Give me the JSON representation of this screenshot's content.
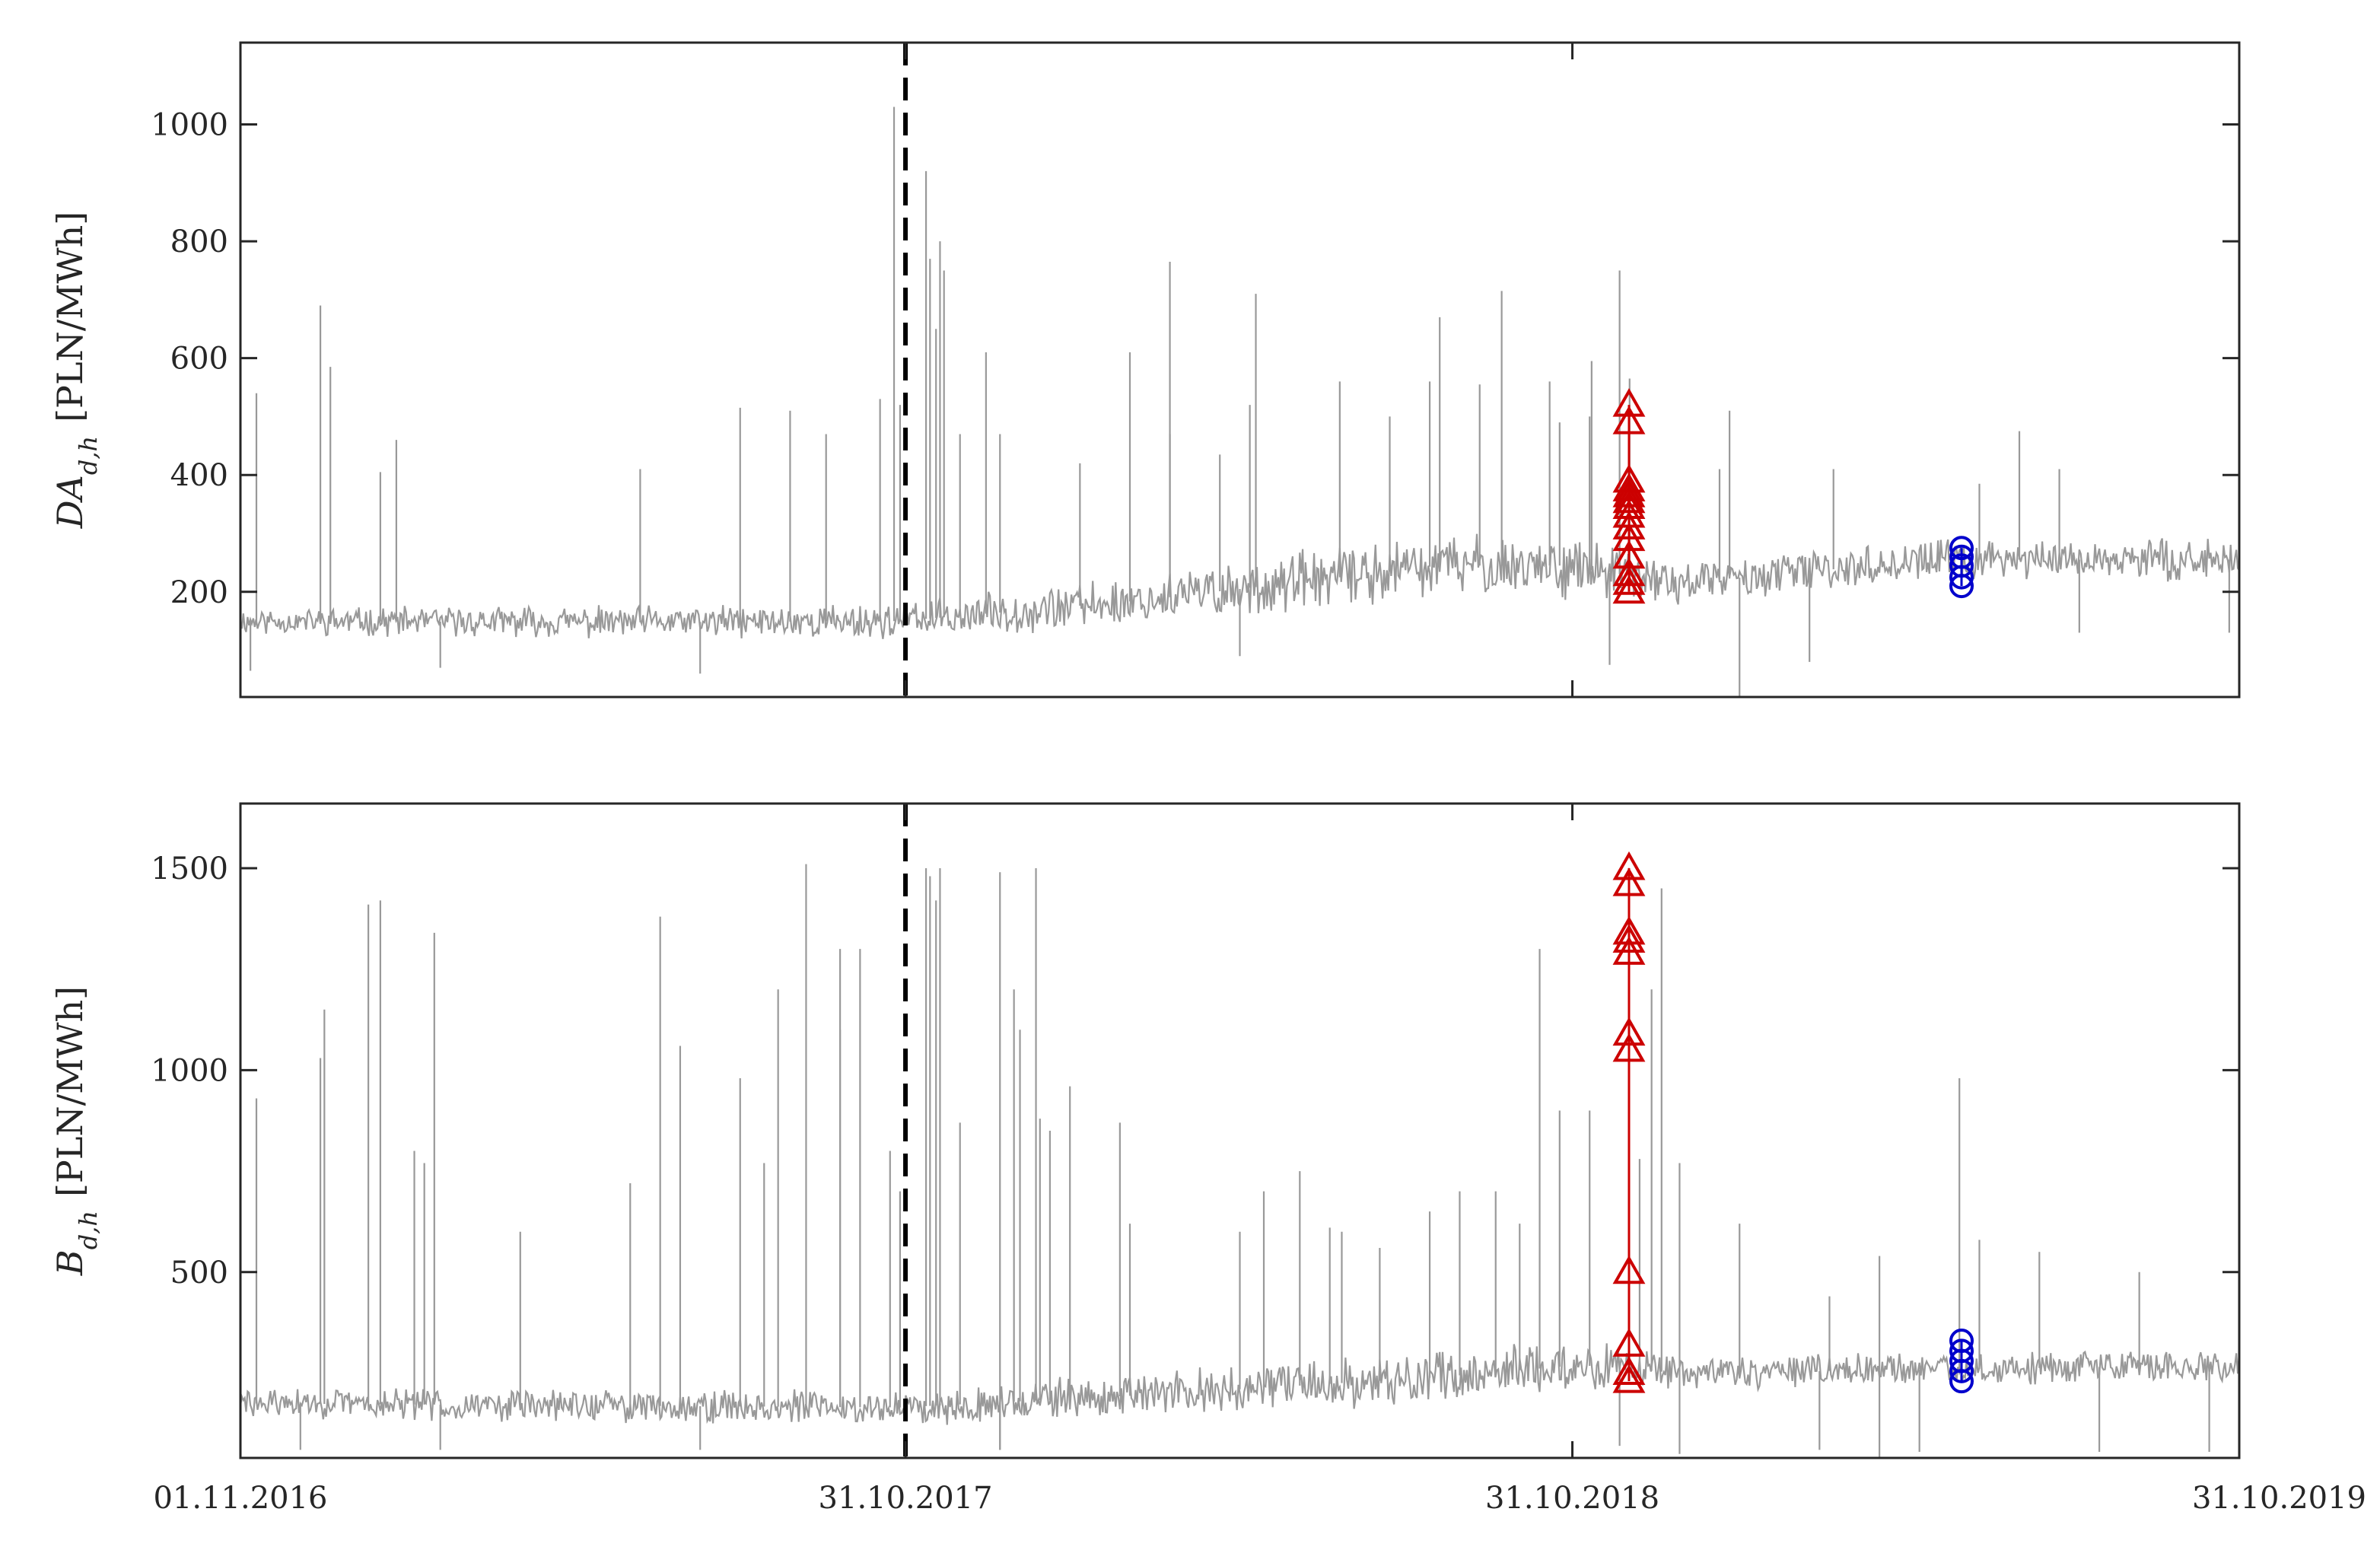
{
  "chart_data": [
    {
      "type": "line",
      "panel": "top",
      "ylabel_main": "DA",
      "ylabel_sub": "d,h",
      "ylabel_unit": "[PLN/MWh]",
      "ylim": [
        20,
        1140
      ],
      "yticks": [
        200,
        400,
        600,
        800,
        1000
      ],
      "xlim": [
        "01.11.2016",
        "31.10.2019"
      ],
      "grid": false,
      "vline_date": "31.10.2017",
      "base_level": [
        [
          0,
          150
        ],
        [
          0.2,
          148
        ],
        [
          0.33,
          150
        ],
        [
          0.45,
          185
        ],
        [
          0.6,
          245
        ],
        [
          0.66,
          245
        ],
        [
          0.72,
          215
        ],
        [
          0.85,
          255
        ],
        [
          1.0,
          255
        ]
      ],
      "noise_amplitude": [
        [
          0,
          30
        ],
        [
          0.33,
          40
        ],
        [
          0.5,
          65
        ],
        [
          0.67,
          70
        ],
        [
          0.72,
          45
        ],
        [
          1.0,
          45
        ]
      ],
      "dips": [
        [
          0.005,
          65
        ],
        [
          0.1,
          70
        ],
        [
          0.23,
          60
        ],
        [
          0.5,
          90
        ],
        [
          0.685,
          75
        ],
        [
          0.75,
          20
        ],
        [
          0.785,
          80
        ],
        [
          0.92,
          130
        ],
        [
          0.995,
          130
        ]
      ],
      "spikes": [
        {
          "x": 0.008,
          "y": 540
        },
        {
          "x": 0.04,
          "y": 690
        },
        {
          "x": 0.045,
          "y": 585
        },
        {
          "x": 0.07,
          "y": 405
        },
        {
          "x": 0.078,
          "y": 460
        },
        {
          "x": 0.2,
          "y": 410
        },
        {
          "x": 0.25,
          "y": 515
        },
        {
          "x": 0.275,
          "y": 510
        },
        {
          "x": 0.293,
          "y": 470
        },
        {
          "x": 0.327,
          "y": 1030
        },
        {
          "x": 0.32,
          "y": 530
        },
        {
          "x": 0.343,
          "y": 920
        },
        {
          "x": 0.33,
          "y": 520
        },
        {
          "x": 0.345,
          "y": 770
        },
        {
          "x": 0.348,
          "y": 650
        },
        {
          "x": 0.35,
          "y": 800
        },
        {
          "x": 0.352,
          "y": 750
        },
        {
          "x": 0.36,
          "y": 470
        },
        {
          "x": 0.373,
          "y": 610
        },
        {
          "x": 0.38,
          "y": 470
        },
        {
          "x": 0.42,
          "y": 420
        },
        {
          "x": 0.445,
          "y": 610
        },
        {
          "x": 0.465,
          "y": 470
        },
        {
          "x": 0.465,
          "y": 765
        },
        {
          "x": 0.49,
          "y": 435
        },
        {
          "x": 0.505,
          "y": 520
        },
        {
          "x": 0.508,
          "y": 710
        },
        {
          "x": 0.55,
          "y": 560
        },
        {
          "x": 0.575,
          "y": 500
        },
        {
          "x": 0.595,
          "y": 560
        },
        {
          "x": 0.6,
          "y": 670
        },
        {
          "x": 0.62,
          "y": 555
        },
        {
          "x": 0.631,
          "y": 715
        },
        {
          "x": 0.655,
          "y": 560
        },
        {
          "x": 0.66,
          "y": 490
        },
        {
          "x": 0.676,
          "y": 595
        },
        {
          "x": 0.675,
          "y": 500
        },
        {
          "x": 0.69,
          "y": 750
        },
        {
          "x": 0.695,
          "y": 565
        },
        {
          "x": 0.74,
          "y": 410
        },
        {
          "x": 0.745,
          "y": 510
        },
        {
          "x": 0.797,
          "y": 410
        },
        {
          "x": 0.87,
          "y": 385
        },
        {
          "x": 0.89,
          "y": 475
        },
        {
          "x": 0.91,
          "y": 410
        }
      ],
      "red_marker_x": "01.12.2018",
      "red_markers": [
        200,
        215,
        230,
        260,
        290,
        310,
        330,
        345,
        355,
        365,
        375,
        390,
        490,
        520
      ],
      "blue_marker_x": "01.06.2019",
      "blue_markers": [
        210,
        225,
        245,
        260,
        275
      ]
    },
    {
      "type": "line",
      "panel": "bottom",
      "ylabel_main": "B",
      "ylabel_sub": "d,h",
      "ylabel_unit": "[PLN/MWh]",
      "ylim": [
        40,
        1660
      ],
      "yticks": [
        500,
        1000,
        1500
      ],
      "xlim": [
        "01.11.2016",
        "31.10.2019"
      ],
      "xticks": [
        "01.11.2016",
        "31.10.2017",
        "31.10.2018",
        "31.10.2019"
      ],
      "grid": false,
      "vline_date": "31.10.2017",
      "base_level": [
        [
          0,
          175
        ],
        [
          0.33,
          165
        ],
        [
          0.45,
          195
        ],
        [
          0.6,
          240
        ],
        [
          0.67,
          270
        ],
        [
          0.72,
          250
        ],
        [
          1.0,
          270
        ]
      ],
      "noise_amplitude": [
        [
          0,
          50
        ],
        [
          0.33,
          55
        ],
        [
          0.5,
          80
        ],
        [
          0.67,
          90
        ],
        [
          0.72,
          55
        ],
        [
          1.0,
          55
        ]
      ],
      "dips": [
        [
          0.03,
          60
        ],
        [
          0.1,
          60
        ],
        [
          0.23,
          60
        ],
        [
          0.38,
          60
        ],
        [
          0.38,
          60
        ],
        [
          0.69,
          70
        ],
        [
          0.72,
          50
        ],
        [
          0.79,
          60
        ],
        [
          0.82,
          40
        ],
        [
          0.84,
          55
        ],
        [
          0.93,
          55
        ],
        [
          0.985,
          55
        ]
      ],
      "spikes": [
        {
          "x": 0.008,
          "y": 930
        },
        {
          "x": 0.04,
          "y": 1030
        },
        {
          "x": 0.042,
          "y": 1150
        },
        {
          "x": 0.064,
          "y": 1410
        },
        {
          "x": 0.07,
          "y": 1420
        },
        {
          "x": 0.087,
          "y": 800
        },
        {
          "x": 0.092,
          "y": 770
        },
        {
          "x": 0.097,
          "y": 1340
        },
        {
          "x": 0.14,
          "y": 600
        },
        {
          "x": 0.195,
          "y": 720
        },
        {
          "x": 0.21,
          "y": 1380
        },
        {
          "x": 0.22,
          "y": 1060
        },
        {
          "x": 0.25,
          "y": 980
        },
        {
          "x": 0.262,
          "y": 770
        },
        {
          "x": 0.269,
          "y": 1200
        },
        {
          "x": 0.283,
          "y": 1510
        },
        {
          "x": 0.3,
          "y": 1100
        },
        {
          "x": 0.3,
          "y": 1300
        },
        {
          "x": 0.31,
          "y": 1300
        },
        {
          "x": 0.325,
          "y": 800
        },
        {
          "x": 0.33,
          "y": 700
        },
        {
          "x": 0.343,
          "y": 1500
        },
        {
          "x": 0.345,
          "y": 1480
        },
        {
          "x": 0.348,
          "y": 1420
        },
        {
          "x": 0.35,
          "y": 1500
        },
        {
          "x": 0.38,
          "y": 1490
        },
        {
          "x": 0.36,
          "y": 870
        },
        {
          "x": 0.387,
          "y": 1200
        },
        {
          "x": 0.39,
          "y": 1100
        },
        {
          "x": 0.398,
          "y": 1500
        },
        {
          "x": 0.4,
          "y": 880
        },
        {
          "x": 0.405,
          "y": 850
        },
        {
          "x": 0.415,
          "y": 960
        },
        {
          "x": 0.44,
          "y": 870
        },
        {
          "x": 0.445,
          "y": 620
        },
        {
          "x": 0.5,
          "y": 600
        },
        {
          "x": 0.512,
          "y": 700
        },
        {
          "x": 0.53,
          "y": 750
        },
        {
          "x": 0.545,
          "y": 610
        },
        {
          "x": 0.551,
          "y": 600
        },
        {
          "x": 0.57,
          "y": 560
        },
        {
          "x": 0.595,
          "y": 650
        },
        {
          "x": 0.61,
          "y": 700
        },
        {
          "x": 0.628,
          "y": 700
        },
        {
          "x": 0.64,
          "y": 620
        },
        {
          "x": 0.65,
          "y": 1300
        },
        {
          "x": 0.66,
          "y": 900
        },
        {
          "x": 0.675,
          "y": 900
        },
        {
          "x": 0.7,
          "y": 780
        },
        {
          "x": 0.706,
          "y": 1200
        },
        {
          "x": 0.711,
          "y": 1450
        },
        {
          "x": 0.72,
          "y": 770
        },
        {
          "x": 0.75,
          "y": 620
        },
        {
          "x": 0.795,
          "y": 440
        },
        {
          "x": 0.82,
          "y": 540
        },
        {
          "x": 0.86,
          "y": 980
        },
        {
          "x": 0.87,
          "y": 580
        },
        {
          "x": 0.9,
          "y": 550
        },
        {
          "x": 0.95,
          "y": 500
        }
      ],
      "red_marker_x": "01.12.2018",
      "red_markers": [
        230,
        250,
        320,
        500,
        1050,
        1090,
        1290,
        1320,
        1340,
        1460,
        1500
      ],
      "blue_marker_x": "01.06.2019",
      "blue_markers": [
        230,
        255,
        280,
        305,
        330
      ]
    }
  ]
}
